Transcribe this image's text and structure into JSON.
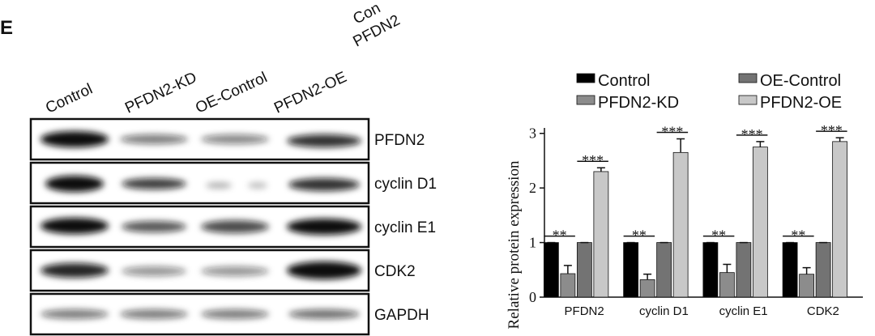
{
  "panel_label": "E",
  "cropped_labels": [
    "Con",
    "PFDN2"
  ],
  "blot": {
    "lanes": [
      "Control",
      "PFDN2-KD",
      "OE-Control",
      "PFDN2-OE"
    ],
    "proteins": [
      "PFDN2",
      "cyclin D1",
      "cyclin E1",
      "CDK2",
      "GAPDH"
    ]
  },
  "chart_data": {
    "type": "bar",
    "y_label": "Relative protein expression",
    "categories": [
      "PFDN2",
      "cyclin D1",
      "cyclin E1",
      "CDK2"
    ],
    "series": [
      {
        "name": "Control",
        "color": "#000000",
        "values": [
          1,
          1,
          1,
          1
        ],
        "errors": [
          0,
          0,
          0,
          0
        ]
      },
      {
        "name": "PFDN2-KD",
        "color": "#8c8c8c",
        "values": [
          0.43,
          0.32,
          0.45,
          0.42
        ],
        "errors": [
          0.15,
          0.1,
          0.15,
          0.12
        ]
      },
      {
        "name": "OE-Control",
        "color": "#737373",
        "values": [
          1,
          1,
          1,
          1
        ],
        "errors": [
          0,
          0,
          0,
          0
        ]
      },
      {
        "name": "PFDN2-OE",
        "color": "#c8c8c8",
        "values": [
          2.3,
          2.65,
          2.75,
          2.85
        ],
        "errors": [
          0.07,
          0.25,
          0.1,
          0.07
        ]
      }
    ],
    "annotations": {
      "kd_vs_control": [
        "**",
        "**",
        "**",
        "**"
      ],
      "oe_vs_oe_control": [
        "***",
        "***",
        "***",
        "***"
      ]
    },
    "ylim": [
      0,
      3.1
    ],
    "yticks": [
      0,
      1,
      2,
      3
    ],
    "grid": false
  }
}
